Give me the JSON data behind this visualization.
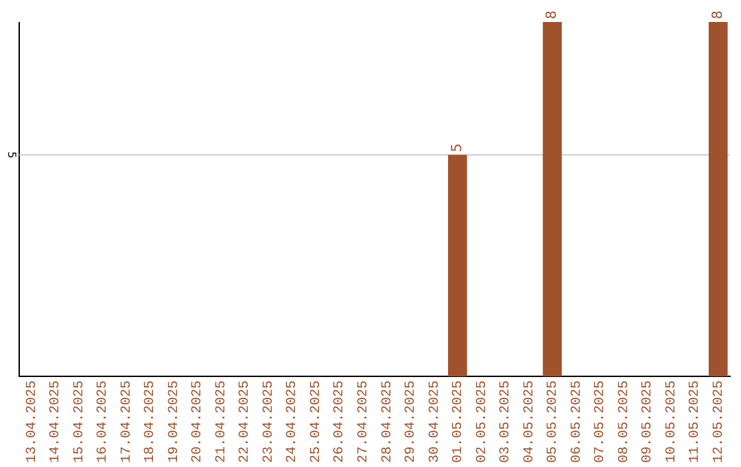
{
  "chart_data": {
    "type": "bar",
    "categories": [
      "13.04.2025",
      "14.04.2025",
      "15.04.2025",
      "16.04.2025",
      "17.04.2025",
      "18.04.2025",
      "19.04.2025",
      "20.04.2025",
      "21.04.2025",
      "22.04.2025",
      "23.04.2025",
      "24.04.2025",
      "25.04.2025",
      "26.04.2025",
      "27.04.2025",
      "28.04.2025",
      "29.04.2025",
      "30.04.2025",
      "01.05.2025",
      "02.05.2025",
      "03.05.2025",
      "04.05.2025",
      "05.05.2025",
      "06.05.2025",
      "07.05.2025",
      "08.05.2025",
      "09.05.2025",
      "10.05.2025",
      "11.05.2025",
      "12.05.2025"
    ],
    "values": [
      null,
      null,
      null,
      null,
      null,
      null,
      null,
      null,
      null,
      null,
      null,
      null,
      null,
      null,
      null,
      null,
      null,
      null,
      5,
      null,
      null,
      null,
      8,
      null,
      null,
      null,
      null,
      null,
      null,
      8
    ],
    "data_labels": true,
    "color": "#a0522d",
    "ylim": [
      0,
      8
    ],
    "ref_lines": [
      {
        "axis": "y",
        "value": 5,
        "label": "5",
        "color": "#cccccc"
      }
    ],
    "legend": false
  }
}
